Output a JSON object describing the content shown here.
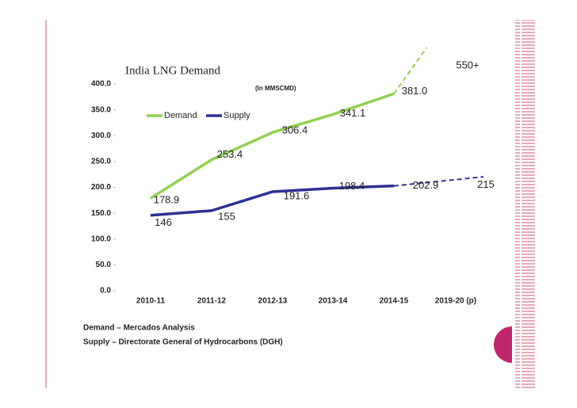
{
  "chart_data": {
    "type": "line",
    "title": "India LNG Demand",
    "subtitle": "(In MMSCMD)",
    "categories": [
      "2010-11",
      "2011-12",
      "2012-13",
      "2013-14",
      "2014-15",
      "2019-20 (p)"
    ],
    "series": [
      {
        "name": "Demand",
        "color": "#92d050",
        "values": [
          178.9,
          253.4,
          306.4,
          341.1,
          381.0,
          550
        ],
        "value_labels": [
          "178.9",
          "253.4",
          "306.4",
          "341.1",
          "381.0",
          "550+"
        ]
      },
      {
        "name": "Supply",
        "color": "#2e3192",
        "values": [
          146,
          155,
          191.6,
          198.4,
          202.9,
          215
        ],
        "value_labels": [
          "146",
          "155",
          "191.6",
          "198.4",
          "202.9",
          "215"
        ]
      }
    ],
    "ylim": [
      0,
      400
    ],
    "yticks": [
      {
        "value": 0,
        "label": "0.0"
      },
      {
        "value": 50,
        "label": "50.0"
      },
      {
        "value": 100,
        "label": "100.0"
      },
      {
        "value": 150,
        "label": "150.0"
      },
      {
        "value": 200,
        "label": "200.0"
      },
      {
        "value": 250,
        "label": "250.0"
      },
      {
        "value": 300,
        "label": "300.0"
      },
      {
        "value": 350,
        "label": "350.0"
      },
      {
        "value": 400,
        "label": "400.0"
      }
    ],
    "notes": [
      "Demand – Mercados Analysis",
      "Supply – Directorate General of Hydrocarbons (DGH)"
    ]
  }
}
